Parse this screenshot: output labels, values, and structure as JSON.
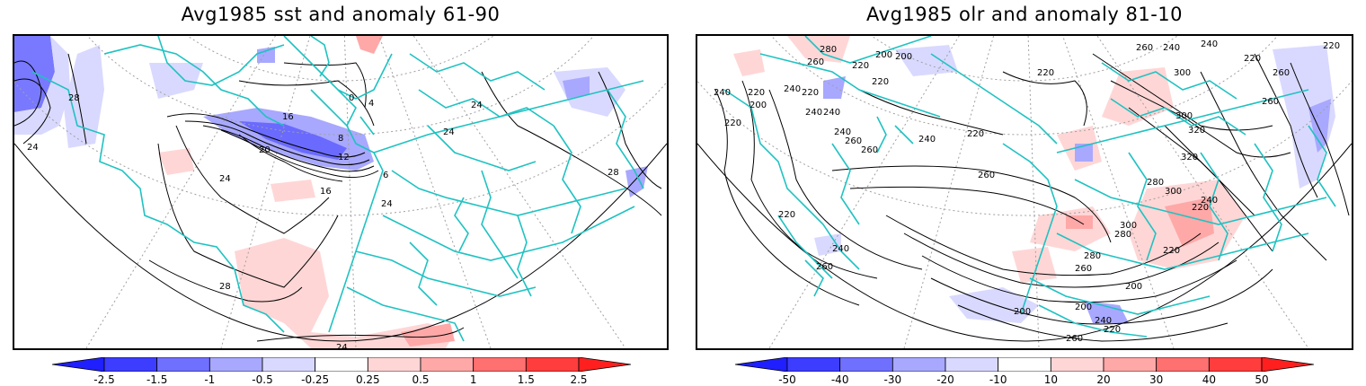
{
  "panels": [
    {
      "title": "Avg1985 sst and anomaly 61-90",
      "contour_labels": [
        "28",
        "24",
        "0",
        "4",
        "8",
        "12",
        "16",
        "20",
        "24",
        "16",
        "6",
        "24",
        "24",
        "24",
        "28",
        "28",
        "24"
      ],
      "colorbar": {
        "ticks": [
          "-2.5",
          "-1.5",
          "-1",
          "-0.5",
          "-0.25",
          "0.25",
          "0.5",
          "1",
          "1.5",
          "2.5"
        ],
        "colors": [
          "#1f1fff",
          "#3d3dff",
          "#7070ff",
          "#a8a8ff",
          "#d9d9ff",
          "#ffffff",
          "#ffd6d6",
          "#ffa8a8",
          "#ff7070",
          "#ff3d3d",
          "#ff1f1f"
        ]
      }
    },
    {
      "title": "Avg1985 olr and anomaly 81-10",
      "contour_labels": [
        "280",
        "260",
        "220",
        "220",
        "240",
        "200",
        "240",
        "220",
        "220",
        "200",
        "240",
        "200",
        "220",
        "300",
        "260",
        "240",
        "240",
        "220",
        "260",
        "220",
        "240",
        "220",
        "320",
        "300",
        "260",
        "240",
        "260",
        "280",
        "300",
        "320",
        "280",
        "260",
        "240",
        "220",
        "260",
        "220",
        "240",
        "300",
        "280",
        "260",
        "240",
        "220",
        "200",
        "200",
        "220",
        "240",
        "260",
        "220",
        "200",
        "260"
      ],
      "colorbar": {
        "ticks": [
          "-50",
          "-40",
          "-30",
          "-20",
          "-10",
          "10",
          "20",
          "30",
          "40",
          "50"
        ],
        "colors": [
          "#1f1fff",
          "#3d3dff",
          "#7070ff",
          "#a8a8ff",
          "#d9d9ff",
          "#ffffff",
          "#ffd6d6",
          "#ffa8a8",
          "#ff7070",
          "#ff3d3d",
          "#ff1f1f"
        ]
      }
    }
  ],
  "colors": {
    "coastline": "#1fc2c2",
    "contour": "#000000",
    "grid": "#a0a0a0"
  }
}
